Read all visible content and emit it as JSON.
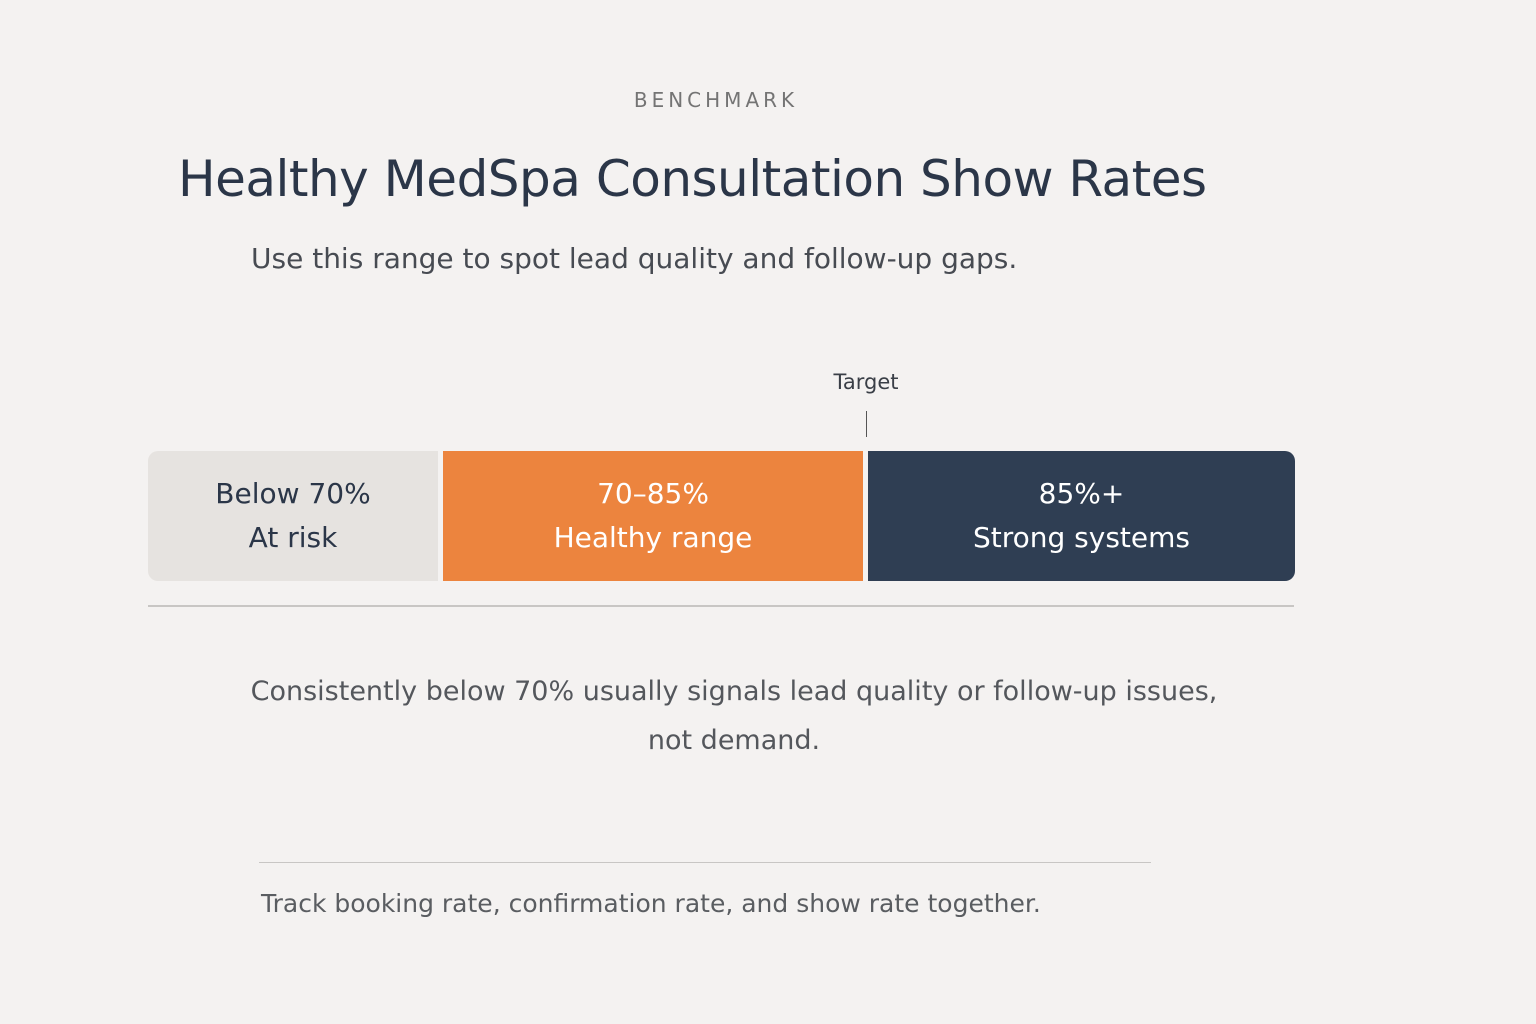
{
  "eyebrow": "BENCHMARK",
  "title": "Healthy MedSpa Consultation Show Rates",
  "subtitle": "Use this range to spot lead quality and follow-up gaps.",
  "target_label": "Target",
  "segments": [
    {
      "range": "Below 70%",
      "label": "At risk",
      "color": "#e6e3e0"
    },
    {
      "range": "70–85%",
      "label": "Healthy range",
      "color": "#ec843e"
    },
    {
      "range": "85%+",
      "label": "Strong systems",
      "color": "#2f3e53"
    }
  ],
  "note": "Consistently below 70% usually signals lead quality or follow-up issues, not demand.",
  "footer": "Track booking rate, confirmation rate, and show rate together."
}
